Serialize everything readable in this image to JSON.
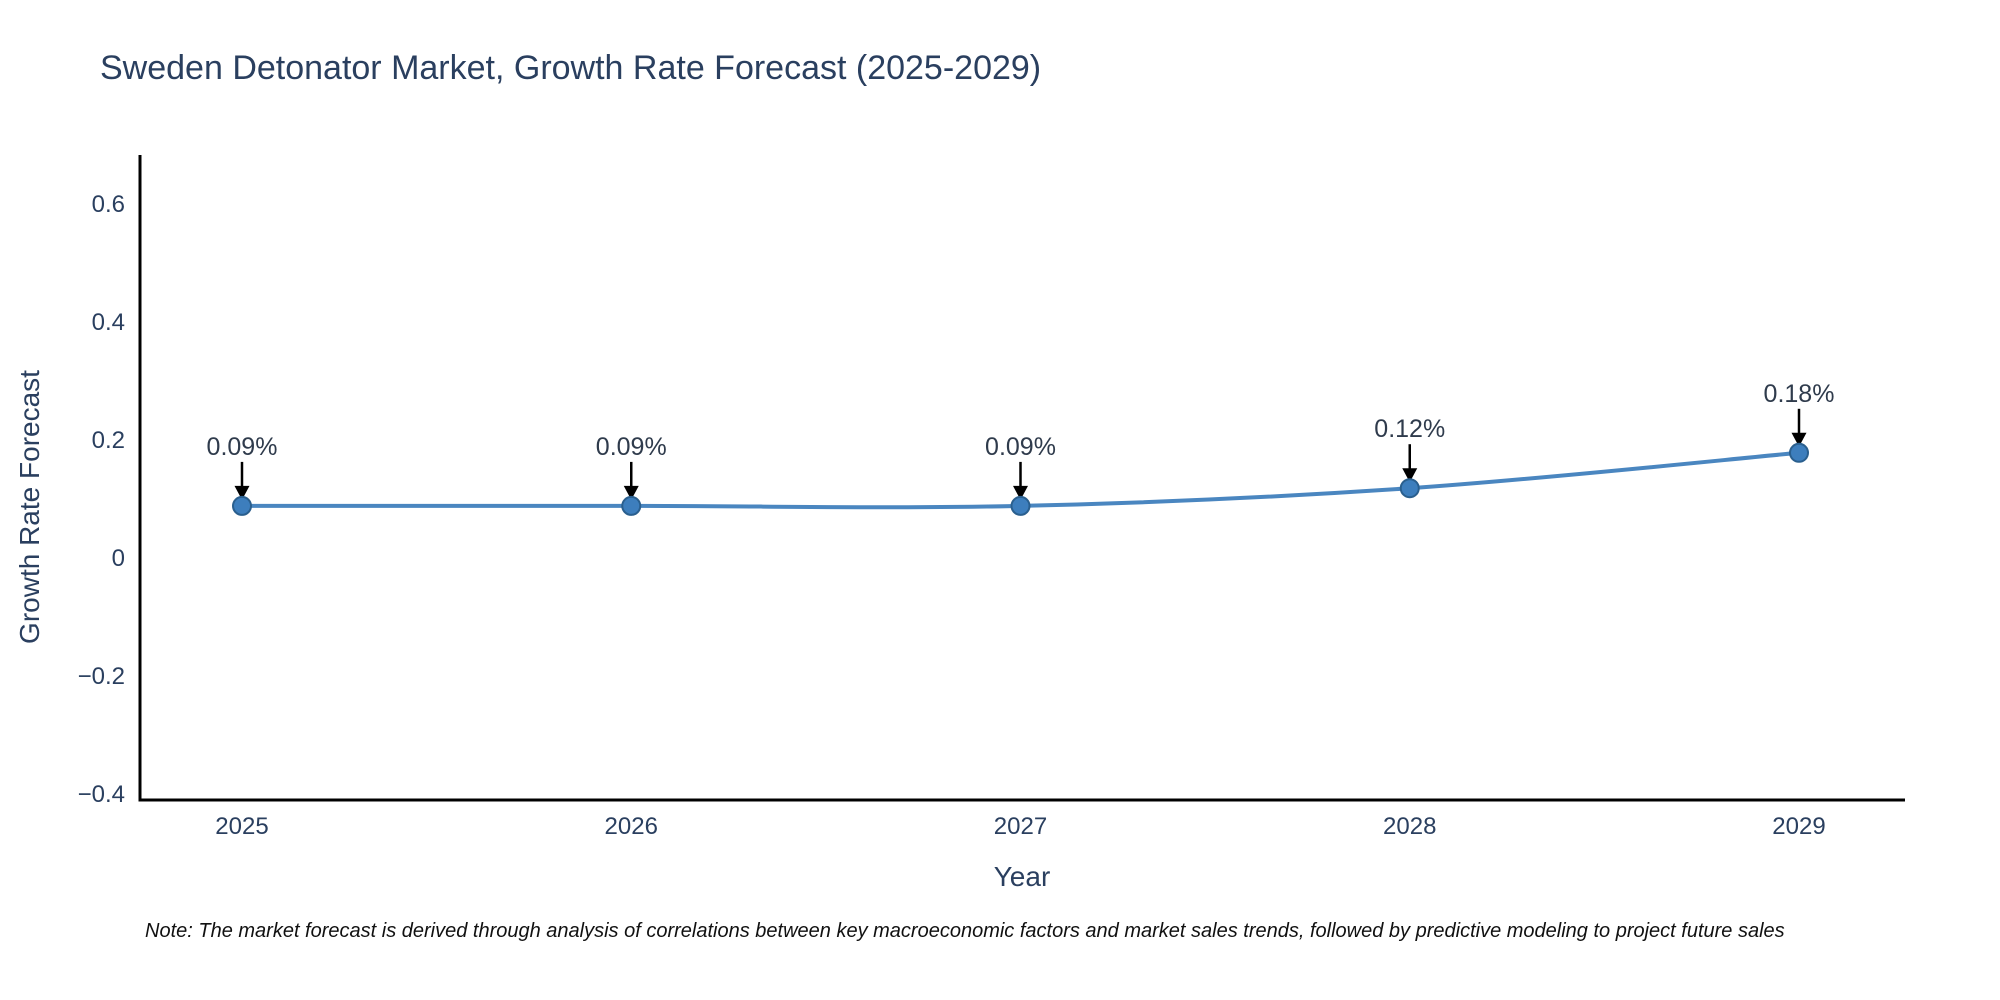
{
  "title": "Sweden Detonator Market, Growth Rate Forecast (2025-2029)",
  "note": "Note: The market forecast is derived through analysis of correlations between key macroeconomic factors and market sales trends, followed by predictive modeling to project future sales",
  "chart_data": {
    "type": "line",
    "title": "Sweden Detonator Market, Growth Rate Forecast (2025-2029)",
    "xlabel": "Year",
    "ylabel": "Growth Rate Forecast",
    "categories": [
      "2025",
      "2026",
      "2027",
      "2028",
      "2029"
    ],
    "series": [
      {
        "name": "Growth Rate Forecast",
        "values": [
          0.09,
          0.09,
          0.09,
          0.12,
          0.18
        ]
      }
    ],
    "point_labels": [
      "0.09%",
      "0.09%",
      "0.09%",
      "0.12%",
      "0.18%"
    ],
    "annotation_style": "black-arrow-down-to-point",
    "ylim": [
      -0.4,
      0.6
    ],
    "yticks": [
      0.6,
      0.4,
      0.2,
      0,
      -0.2,
      -0.4
    ],
    "ytick_labels": [
      "0.6",
      "0.4",
      "0.2",
      "0",
      "−0.2",
      "−0.4"
    ],
    "grid": false,
    "legend": "none",
    "line_shape": "spline",
    "marker": "circle",
    "colors": {
      "line": "#4a86c0",
      "marker_fill": "#3d7ebd",
      "marker_edge": "#2a5f8e",
      "annotation_arrow": "#000000",
      "axis_line": "#000000",
      "text": "#2a3f5f",
      "background": "#ffffff"
    }
  }
}
